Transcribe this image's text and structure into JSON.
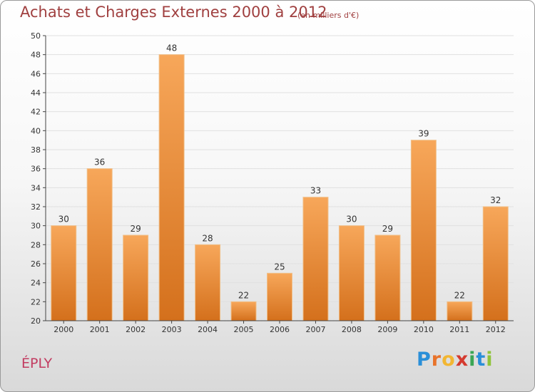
{
  "title": "Achats et Charges Externes 2000 à 2012",
  "subtitle": "(en milliers d'€)",
  "town": "ÉPLY",
  "logo": {
    "letters": [
      "P",
      "r",
      "o",
      "x",
      "i",
      "t",
      "i"
    ],
    "colors": [
      "#2a8fd8",
      "#e8732a",
      "#f2b632",
      "#d43a2f",
      "#3aa655",
      "#2a8fd8",
      "#8fc43a"
    ]
  },
  "colors": {
    "bar_top": "#f7a75a",
    "bar_bottom": "#d4701c",
    "grid": "#e0e0e0",
    "axis": "#444444",
    "title": "#a04040",
    "town": "#c23b60"
  },
  "chart_data": {
    "type": "bar",
    "title": "Achats et Charges Externes 2000 à 2012",
    "xlabel": "",
    "ylabel": "",
    "categories": [
      "2000",
      "2001",
      "2002",
      "2003",
      "2004",
      "2005",
      "2006",
      "2007",
      "2008",
      "2009",
      "2010",
      "2011",
      "2012"
    ],
    "values": [
      30,
      36,
      29,
      48,
      28,
      22,
      25,
      33,
      30,
      29,
      39,
      22,
      32
    ],
    "ylim": [
      20,
      50
    ],
    "yticks": [
      20,
      22,
      24,
      26,
      28,
      30,
      32,
      34,
      36,
      38,
      40,
      42,
      44,
      46,
      48,
      50
    ],
    "grid": true,
    "legend": "none"
  }
}
